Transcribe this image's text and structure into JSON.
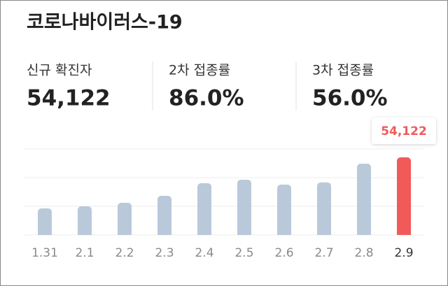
{
  "header": {
    "title": "코로나바이러스-19"
  },
  "stats": [
    {
      "label": "신규 확진자",
      "value": "54,122"
    },
    {
      "label": "2차 접종률",
      "value": "86.0%"
    },
    {
      "label": "3차 접종률",
      "value": "56.0%"
    }
  ],
  "chart_data": {
    "type": "bar",
    "categories": [
      "1.31",
      "2.1",
      "2.2",
      "2.3",
      "2.4",
      "2.5",
      "2.6",
      "2.7",
      "2.8",
      "2.9"
    ],
    "values": [
      18500,
      20000,
      22400,
      27300,
      36100,
      38500,
      35100,
      36600,
      49700,
      54122
    ],
    "value_labels": [
      null,
      null,
      null,
      null,
      null,
      null,
      null,
      null,
      null,
      "54,122"
    ],
    "colors": [
      "#b9c9da",
      "#b9c9da",
      "#b9c9da",
      "#b9c9da",
      "#b9c9da",
      "#b9c9da",
      "#b9c9da",
      "#b9c9da",
      "#b9c9da",
      "#f25a5a"
    ],
    "grid": true
  }
}
